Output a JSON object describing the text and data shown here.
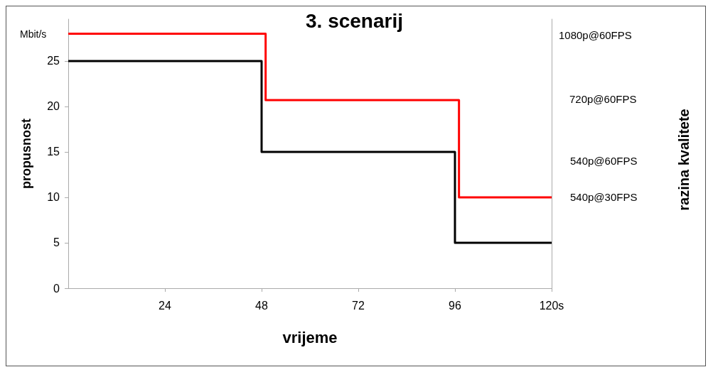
{
  "chart_data": {
    "type": "step",
    "title": "3. scenarij",
    "xlabel": "vrijeme",
    "ylabel": "propusnost",
    "annotations": [
      "Mbit/s",
      "1080p@60FPS",
      "720p@60FPS",
      "540p@60FPS",
      "540p@30FPS",
      "razina kvalitete"
    ],
    "series": [
      {
        "color": "#000000",
        "x": [
          0,
          48,
          96,
          120
        ],
        "values": [
          25,
          15,
          5,
          5
        ]
      },
      {
        "color": "#ff0000",
        "x": [
          0,
          49,
          97,
          120
        ],
        "values": [
          28,
          20.7,
          10,
          10
        ]
      }
    ],
    "xlim": [
      0,
      120
    ],
    "xticks": [
      24,
      48,
      72,
      96,
      {
        "value": 120,
        "label": "120s"
      }
    ],
    "ylim": [
      0,
      29.6
    ],
    "yticks": [
      0,
      5,
      10,
      15,
      20,
      25
    ],
    "grid": false,
    "marker": "none",
    "line_style": "solid"
  }
}
